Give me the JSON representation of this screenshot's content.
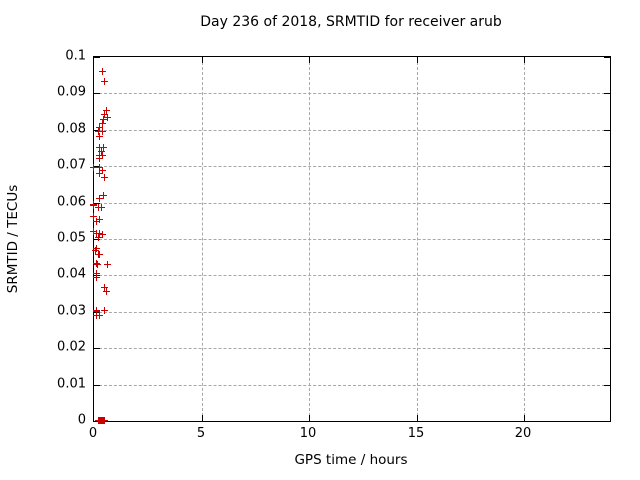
{
  "title": "Day 236 of 2018, SRMTID for receiver arub",
  "chart_data": {
    "type": "scatter",
    "title": "Day 236 of 2018, SRMTID for receiver arub",
    "xlabel": "GPS time / hours",
    "ylabel": "SRMTID / TECUs",
    "xlim": [
      0,
      24
    ],
    "ylim": [
      0,
      0.1
    ],
    "x_ticks": [
      0,
      5,
      10,
      15,
      20
    ],
    "x_tick_labels": [
      "0",
      "5",
      "10",
      "15",
      "20"
    ],
    "y_ticks": [
      0,
      0.01,
      0.02,
      0.03,
      0.04,
      0.05,
      0.06,
      0.07,
      0.08,
      0.09,
      0.1
    ],
    "y_tick_labels": [
      "0",
      "0.01",
      "0.02",
      "0.03",
      "0.04",
      "0.05",
      "0.06",
      "0.07",
      "0.08",
      "0.09",
      "0.1"
    ],
    "grid": true,
    "legend_position": "none",
    "marker": "plus",
    "marker_color": "#cc0000",
    "series": [
      {
        "name": "SRMTID",
        "points": [
          [
            0.4,
            0.0958
          ],
          [
            0.53,
            0.0931
          ],
          [
            0.58,
            0.0852
          ],
          [
            0.49,
            0.0841
          ],
          [
            0.63,
            0.0833
          ],
          [
            0.44,
            0.0827
          ],
          [
            0.4,
            0.0816
          ],
          [
            0.3,
            0.0805
          ],
          [
            0.21,
            0.0793
          ],
          [
            0.4,
            0.0793
          ],
          [
            0.3,
            0.0781
          ],
          [
            0.26,
            0.0751
          ],
          [
            0.44,
            0.0751
          ],
          [
            0.35,
            0.074
          ],
          [
            0.26,
            0.0729
          ],
          [
            0.4,
            0.0729
          ],
          [
            0.3,
            0.0721
          ],
          [
            0.0,
            0.0696
          ],
          [
            0.3,
            0.0696
          ],
          [
            0.4,
            0.0688
          ],
          [
            0.3,
            0.0679
          ],
          [
            0.49,
            0.0668
          ],
          [
            0.44,
            0.0618
          ],
          [
            0.26,
            0.0611
          ],
          [
            0.0,
            0.0593
          ],
          [
            0.02,
            0.059
          ],
          [
            0.21,
            0.0585
          ],
          [
            0.35,
            0.0585
          ],
          [
            0.0,
            0.056
          ],
          [
            0.26,
            0.0551
          ],
          [
            0.16,
            0.0548
          ],
          [
            0.0,
            0.0518
          ],
          [
            0.16,
            0.0515
          ],
          [
            0.3,
            0.0515
          ],
          [
            0.4,
            0.051
          ],
          [
            0.21,
            0.0502
          ],
          [
            0.16,
            0.0474
          ],
          [
            0.07,
            0.0466
          ],
          [
            0.21,
            0.0455
          ],
          [
            0.3,
            0.0455
          ],
          [
            0.16,
            0.0431
          ],
          [
            0.19,
            0.0428
          ],
          [
            0.63,
            0.043
          ],
          [
            0.12,
            0.0403
          ],
          [
            0.16,
            0.0392
          ],
          [
            0.49,
            0.0365
          ],
          [
            0.58,
            0.0354
          ],
          [
            0.14,
            0.0303
          ],
          [
            0.16,
            0.03
          ],
          [
            0.53,
            0.0302
          ],
          [
            0.12,
            0.0288
          ],
          [
            0.26,
            0.0288
          ],
          [
            0.21,
            0.0
          ],
          [
            0.24,
            0.0
          ],
          [
            0.28,
            0.0
          ],
          [
            0.31,
            0.0
          ],
          [
            0.35,
            0.0
          ],
          [
            0.38,
            0.0
          ],
          [
            0.42,
            0.0
          ],
          [
            0.45,
            0.0
          ],
          [
            0.49,
            0.0
          ]
        ]
      }
    ]
  }
}
